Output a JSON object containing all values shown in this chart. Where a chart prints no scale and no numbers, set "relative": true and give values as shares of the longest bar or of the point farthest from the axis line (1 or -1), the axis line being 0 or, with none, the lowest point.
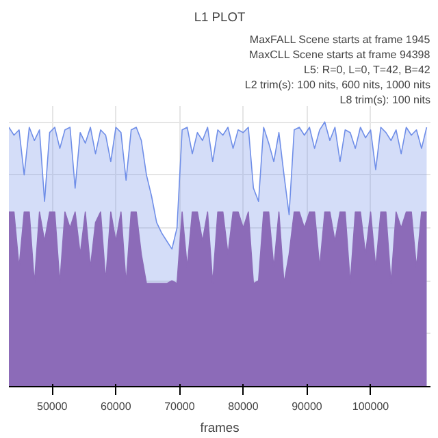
{
  "chart_data": {
    "type": "area",
    "title": "L1 PLOT",
    "xlabel": "frames",
    "relative": true,
    "grid": true,
    "annotations": [
      "MaxFALL Scene starts at frame 1945",
      "MaxCLL Scene starts at frame 94398",
      "L5: R=0, L=0, T=42, B=42",
      "L2 trim(s): 100 nits, 600 nits, 1000 nits",
      "L8 trim(s): 100 nits"
    ],
    "xlim": [
      43200,
      109400
    ],
    "xticks": [
      50000,
      60000,
      70000,
      80000,
      90000,
      100000
    ],
    "x": [
      43200,
      44000,
      44800,
      45600,
      46400,
      47200,
      48000,
      48800,
      49600,
      50400,
      51200,
      52000,
      52800,
      53600,
      54400,
      55200,
      56000,
      56800,
      57600,
      58400,
      59200,
      60000,
      60800,
      61600,
      62400,
      63200,
      64000,
      64800,
      65600,
      66400,
      67200,
      68000,
      68800,
      69600,
      70400,
      71200,
      72000,
      72800,
      73600,
      74400,
      75200,
      76000,
      76800,
      77600,
      78400,
      79200,
      80000,
      80800,
      81600,
      82400,
      83200,
      84000,
      84800,
      85600,
      86400,
      87200,
      88000,
      88800,
      89600,
      90400,
      91200,
      92000,
      92800,
      93600,
      94400,
      95200,
      96000,
      96800,
      97600,
      98400,
      99200,
      100000,
      100800,
      101600,
      102400,
      103200,
      104000,
      104800,
      105600,
      106400,
      107200,
      108000,
      108800
    ],
    "series": [
      {
        "color": "#6f8ee8",
        "values": [
          0.98,
          0.95,
          0.97,
          0.8,
          0.98,
          0.93,
          0.97,
          0.7,
          0.96,
          0.98,
          0.9,
          0.97,
          0.98,
          0.75,
          0.96,
          0.92,
          0.98,
          0.88,
          0.97,
          0.95,
          0.85,
          0.98,
          0.96,
          0.78,
          0.97,
          0.98,
          0.93,
          0.8,
          0.72,
          0.62,
          0.58,
          0.55,
          0.52,
          0.6,
          0.97,
          0.98,
          0.88,
          0.96,
          0.93,
          0.98,
          0.85,
          0.97,
          0.95,
          0.98,
          0.9,
          0.97,
          0.96,
          0.98,
          0.75,
          0.7,
          0.98,
          0.92,
          0.85,
          0.96,
          0.8,
          0.65,
          0.97,
          0.98,
          0.95,
          0.98,
          0.9,
          0.97,
          1.0,
          0.93,
          0.98,
          0.85,
          0.97,
          0.96,
          0.9,
          0.98,
          0.94,
          0.97,
          0.82,
          0.98,
          0.96,
          0.93,
          0.97,
          0.88,
          0.98,
          0.95,
          0.97,
          0.9,
          0.98
        ]
      },
      {
        "color": "#8c6bb8",
        "values": [
          0.66,
          0.66,
          0.45,
          0.66,
          0.66,
          0.39,
          0.66,
          0.55,
          0.66,
          0.66,
          0.39,
          0.66,
          0.6,
          0.66,
          0.5,
          0.66,
          0.45,
          0.62,
          0.66,
          0.4,
          0.66,
          0.55,
          0.66,
          0.39,
          0.66,
          0.66,
          0.5,
          0.39,
          0.39,
          0.39,
          0.39,
          0.39,
          0.4,
          0.39,
          0.66,
          0.45,
          0.66,
          0.66,
          0.55,
          0.66,
          0.39,
          0.66,
          0.66,
          0.5,
          0.66,
          0.66,
          0.6,
          0.66,
          0.39,
          0.4,
          0.66,
          0.66,
          0.45,
          0.66,
          0.39,
          0.5,
          0.66,
          0.66,
          0.6,
          0.66,
          0.66,
          0.45,
          0.66,
          0.66,
          0.55,
          0.66,
          0.66,
          0.39,
          0.66,
          0.66,
          0.5,
          0.66,
          0.45,
          0.66,
          0.66,
          0.39,
          0.66,
          0.6,
          0.66,
          0.66,
          0.45,
          0.66,
          0.66
        ]
      }
    ]
  }
}
